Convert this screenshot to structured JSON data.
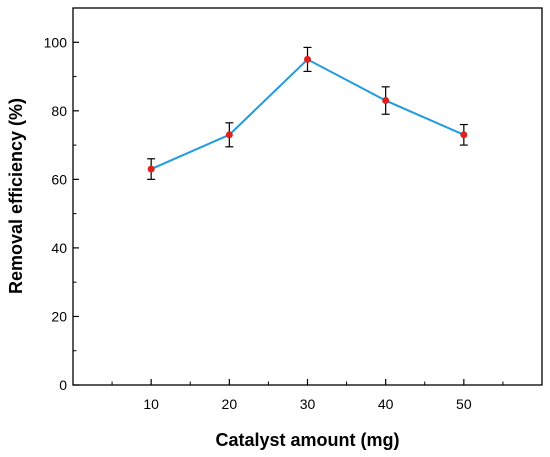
{
  "chart_data": {
    "type": "line",
    "title": "",
    "xlabel": "Catalyst amount (mg)",
    "ylabel": "Removal efficiency  (%)",
    "x": [
      10,
      20,
      30,
      40,
      50
    ],
    "x_ticks": [
      "10",
      "20",
      "30",
      "40",
      "50"
    ],
    "xlim": [
      0,
      60
    ],
    "y_ticks": [
      "0",
      "20",
      "40",
      "60",
      "80",
      "100"
    ],
    "ylim": [
      0,
      110
    ],
    "series": [
      {
        "values": [
          63,
          73,
          95,
          83,
          73
        ],
        "errors": [
          3,
          3.5,
          3.5,
          4,
          3
        ],
        "line_color": "#1f9be0",
        "marker_color": "#e0201c",
        "errorbar_color": "#000000"
      }
    ],
    "grid": false,
    "legend": false
  }
}
